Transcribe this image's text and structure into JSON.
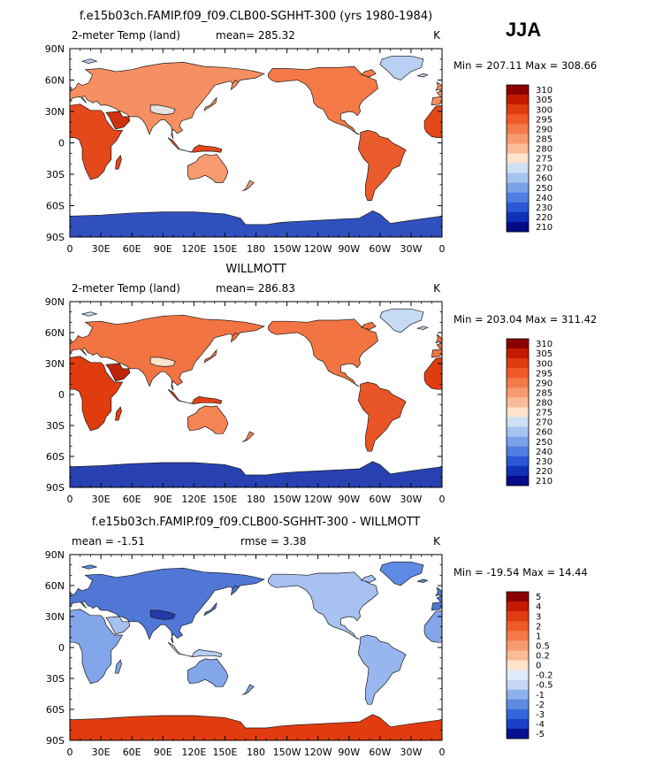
{
  "season_label": "JJA",
  "chart_data": [
    {
      "type": "heatmap",
      "title": "f.e15b03ch.FAMIP.f09_f09.CLB00-SGHHT-300 (yrs 1980-1984)",
      "variable_label": "2-meter Temp (land)",
      "units": "K",
      "stats_text": "mean= 285.32",
      "minmax_text": "Min = 207.11 Max = 308.66",
      "mean": 285.32,
      "min": 207.11,
      "max": 308.66,
      "x_ticks": [
        "0",
        "30E",
        "60E",
        "90E",
        "120E",
        "150E",
        "180",
        "150W",
        "120W",
        "90W",
        "60W",
        "30W",
        "0"
      ],
      "y_ticks": [
        "90N",
        "60N",
        "30N",
        "0",
        "30S",
        "60S",
        "90S"
      ],
      "xlim": [
        0,
        360
      ],
      "ylim": [
        -90,
        90
      ],
      "colorbar_levels": [
        "310",
        "305",
        "300",
        "295",
        "290",
        "285",
        "280",
        "275",
        "270",
        "260",
        "250",
        "240",
        "230",
        "220",
        "210"
      ],
      "colorbar_colors": [
        "#8c0000",
        "#c41a00",
        "#e03c10",
        "#f05a28",
        "#f47a48",
        "#f79a70",
        "#fabb98",
        "#fde3cc",
        "#cfe0f5",
        "#a5c4ef",
        "#7aa2ea",
        "#4f7fe3",
        "#2a58d6",
        "#1030b8",
        "#050a88"
      ],
      "color_scale": [
        [
          210,
          "#050a88"
        ],
        [
          240,
          "#4f7fe3"
        ],
        [
          270,
          "#cfe0f5"
        ],
        [
          280,
          "#fde3cc"
        ],
        [
          290,
          "#f47a48"
        ],
        [
          300,
          "#e03c10"
        ],
        [
          310,
          "#8c0000"
        ]
      ],
      "regions": [
        {
          "name": "north_america",
          "value": 290
        },
        {
          "name": "south_america",
          "value": 295
        },
        {
          "name": "greenland",
          "value": 265
        },
        {
          "name": "eurasia",
          "value": 288
        },
        {
          "name": "tibet",
          "value": 275
        },
        {
          "name": "africa",
          "value": 298
        },
        {
          "name": "arabia",
          "value": 302
        },
        {
          "name": "australia",
          "value": 287
        },
        {
          "name": "indonesia",
          "value": 298
        },
        {
          "name": "antarctica",
          "value": 228
        }
      ]
    },
    {
      "type": "heatmap",
      "title": "WILLMOTT",
      "variable_label": "2-meter Temp (land)",
      "units": "K",
      "stats_text": "mean= 286.83",
      "minmax_text": "Min = 203.04 Max = 311.42",
      "mean": 286.83,
      "min": 203.04,
      "max": 311.42,
      "x_ticks": [
        "0",
        "30E",
        "60E",
        "90E",
        "120E",
        "150E",
        "180",
        "150W",
        "120W",
        "90W",
        "60W",
        "30W",
        "0"
      ],
      "y_ticks": [
        "90N",
        "60N",
        "30N",
        "0",
        "30S",
        "60S",
        "90S"
      ],
      "xlim": [
        0,
        360
      ],
      "ylim": [
        -90,
        90
      ],
      "colorbar_levels": [
        "310",
        "305",
        "300",
        "295",
        "290",
        "285",
        "280",
        "275",
        "270",
        "260",
        "250",
        "240",
        "230",
        "220",
        "210"
      ],
      "colorbar_colors": [
        "#8c0000",
        "#c41a00",
        "#e03c10",
        "#f05a28",
        "#f47a48",
        "#f79a70",
        "#fabb98",
        "#fde3cc",
        "#cfe0f5",
        "#a5c4ef",
        "#7aa2ea",
        "#4f7fe3",
        "#2a58d6",
        "#1030b8",
        "#050a88"
      ],
      "color_scale": [
        [
          210,
          "#050a88"
        ],
        [
          240,
          "#4f7fe3"
        ],
        [
          270,
          "#cfe0f5"
        ],
        [
          280,
          "#fde3cc"
        ],
        [
          290,
          "#f47a48"
        ],
        [
          300,
          "#e03c10"
        ],
        [
          310,
          "#8c0000"
        ]
      ],
      "regions": [
        {
          "name": "north_america",
          "value": 291
        },
        {
          "name": "south_america",
          "value": 296
        },
        {
          "name": "greenland",
          "value": 268
        },
        {
          "name": "eurasia",
          "value": 291
        },
        {
          "name": "tibet",
          "value": 280
        },
        {
          "name": "africa",
          "value": 300
        },
        {
          "name": "arabia",
          "value": 304
        },
        {
          "name": "australia",
          "value": 289
        },
        {
          "name": "indonesia",
          "value": 299
        },
        {
          "name": "antarctica",
          "value": 224
        }
      ]
    },
    {
      "type": "heatmap",
      "title": "f.e15b03ch.FAMIP.f09_f09.CLB00-SGHHT-300 - WILLMOTT",
      "units": "K",
      "stats_text": "mean =   -1.51",
      "rmse_text": "rmse =    3.38",
      "minmax_text": "Min = -19.54 Max =  14.44",
      "mean": -1.51,
      "rmse": 3.38,
      "min": -19.54,
      "max": 14.44,
      "x_ticks": [
        "0",
        "30E",
        "60E",
        "90E",
        "120E",
        "150E",
        "180",
        "150W",
        "120W",
        "90W",
        "60W",
        "30W",
        "0"
      ],
      "y_ticks": [
        "90N",
        "60N",
        "30N",
        "0",
        "30S",
        "60S",
        "90S"
      ],
      "xlim": [
        0,
        360
      ],
      "ylim": [
        -90,
        90
      ],
      "colorbar_levels": [
        "5",
        "4",
        "3",
        "2",
        "1",
        "0.5",
        "0.2",
        "0",
        "-0.2",
        "-0.5",
        "-1",
        "-2",
        "-3",
        "-4",
        "-5"
      ],
      "colorbar_colors": [
        "#8c0000",
        "#c41a00",
        "#e03c10",
        "#f05a28",
        "#f47a48",
        "#f79a70",
        "#fabb98",
        "#fde3cc",
        "#e0ecfa",
        "#c3d6f3",
        "#8eb1ec",
        "#5f8be4",
        "#3466dc",
        "#1a40c4",
        "#071090"
      ],
      "color_scale": [
        [
          -5,
          "#071090"
        ],
        [
          -2,
          "#5f8be4"
        ],
        [
          -0.2,
          "#e0ecfa"
        ],
        [
          0,
          "#fde3cc"
        ],
        [
          1,
          "#f47a48"
        ],
        [
          3,
          "#e03c10"
        ],
        [
          5,
          "#8c0000"
        ]
      ],
      "regions": [
        {
          "name": "north_america",
          "value": -1.0
        },
        {
          "name": "south_america",
          "value": -1.2
        },
        {
          "name": "greenland",
          "value": -2.0
        },
        {
          "name": "eurasia",
          "value": -2.5
        },
        {
          "name": "tibet",
          "value": -4.0
        },
        {
          "name": "africa",
          "value": -1.5
        },
        {
          "name": "arabia",
          "value": -1.0
        },
        {
          "name": "australia",
          "value": -1.5
        },
        {
          "name": "indonesia",
          "value": -0.8
        },
        {
          "name": "antarctica",
          "value": 3.0
        }
      ]
    }
  ]
}
